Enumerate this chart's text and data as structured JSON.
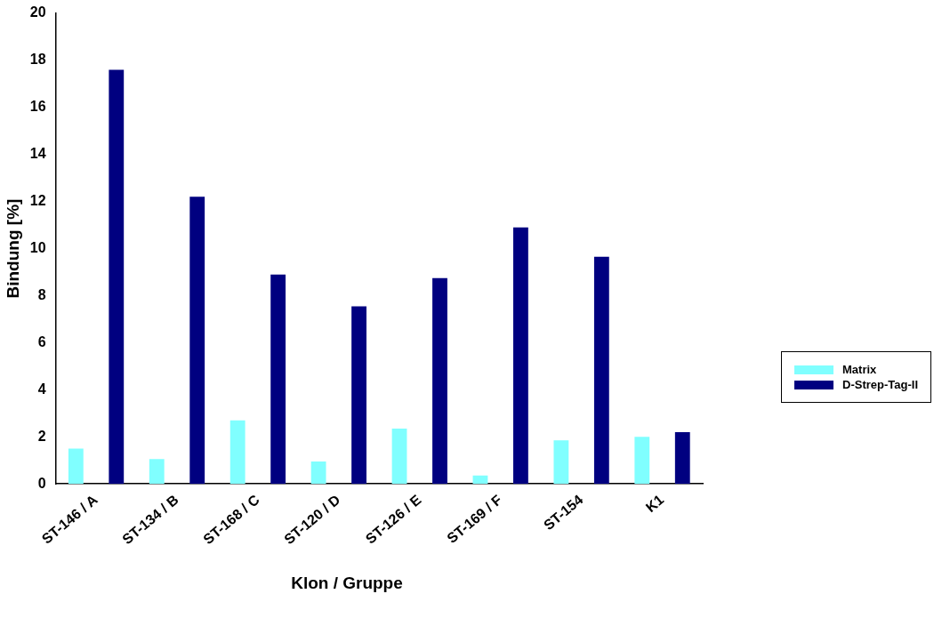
{
  "chart_data": {
    "type": "bar",
    "xlabel": "Klon / Gruppe",
    "ylabel": "Bindung [%]",
    "categories": [
      "ST-146 / A",
      "ST-134 / B",
      "ST-168 / C",
      "ST-120 / D",
      "ST-126 / E",
      "ST-169 / F",
      "ST-154",
      "K1"
    ],
    "series": [
      {
        "name": "Matrix",
        "color": "#80ffff",
        "values": [
          1.5,
          1.05,
          2.7,
          0.95,
          2.35,
          0.35,
          1.85,
          2.0
        ]
      },
      {
        "name": "D-Strep-Tag-II",
        "color": "#000080",
        "values": [
          17.6,
          12.2,
          8.9,
          7.55,
          8.75,
          10.9,
          9.65,
          2.2
        ]
      }
    ],
    "ylim": [
      0,
      20
    ],
    "yticks": [
      0,
      2,
      4,
      6,
      8,
      10,
      12,
      14,
      16,
      18,
      20
    ],
    "grid": false,
    "legend": "right"
  }
}
